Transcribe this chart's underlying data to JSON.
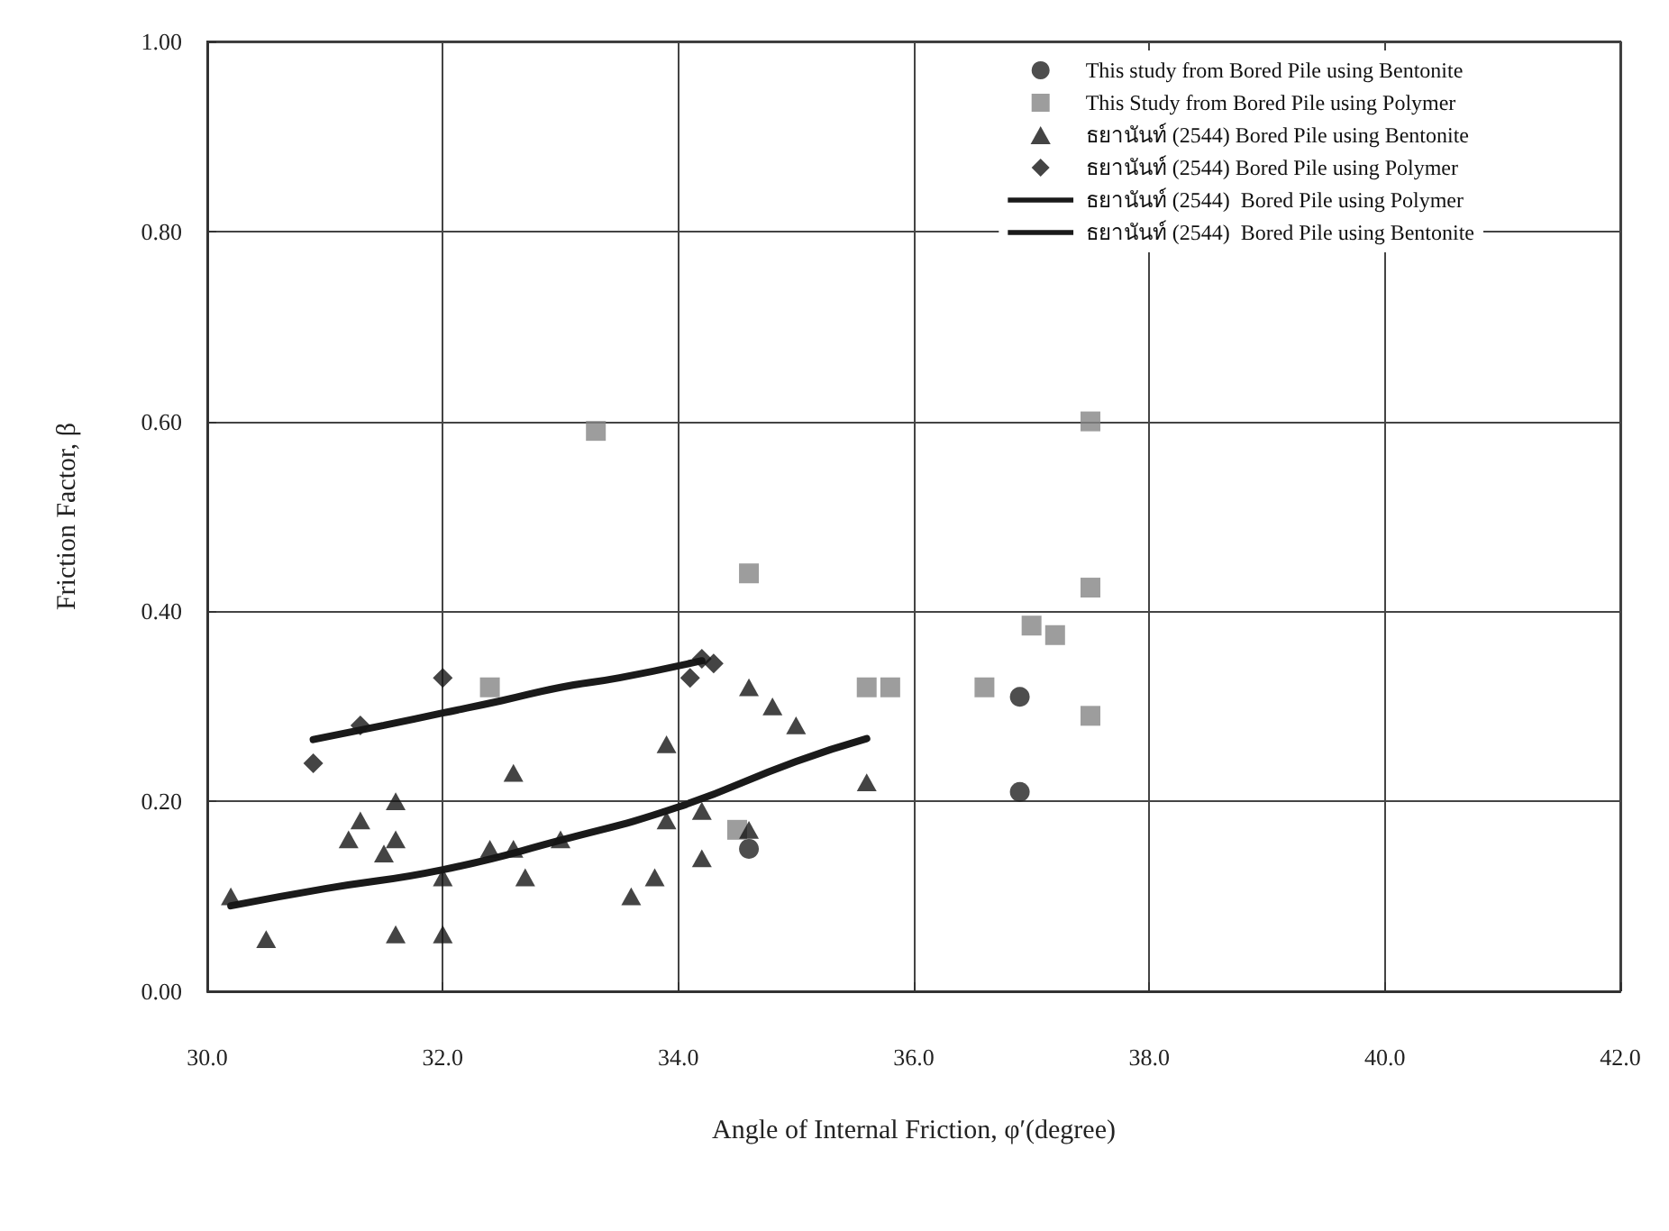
{
  "chart_data": {
    "type": "scatter",
    "xlabel": "Angle of Internal Friction, φ′(degree)",
    "ylabel": "Friction Factor, β",
    "xlim": [
      30,
      42
    ],
    "xticks": [
      {
        "value": 30,
        "label": "30.0"
      },
      {
        "value": 32,
        "label": "32.0"
      },
      {
        "value": 34,
        "label": "34.0"
      },
      {
        "value": 36,
        "label": "36.0"
      },
      {
        "value": 38,
        "label": "38.0"
      },
      {
        "value": 40,
        "label": "40.0"
      },
      {
        "value": 42,
        "label": "42.0"
      }
    ],
    "ylim": [
      0,
      1
    ],
    "yticks": [
      {
        "value": 0,
        "label": "0.00"
      },
      {
        "value": 0.2,
        "label": "0.20"
      },
      {
        "value": 0.4,
        "label": "0.40"
      },
      {
        "value": 0.6,
        "label": "0.60"
      },
      {
        "value": 0.8,
        "label": "0.80"
      },
      {
        "value": 1,
        "label": "1.00"
      }
    ],
    "grid": true,
    "legend": "top right",
    "series": [
      {
        "name": "This study from Bored Pile using Bentonite",
        "marker": "circle",
        "color": "#222222",
        "x": [
          34.6,
          36.9,
          36.9
        ],
        "values": [
          0.15,
          0.31,
          0.21
        ]
      },
      {
        "name": "This Study from Bored Pile using Polymer",
        "marker": "square",
        "color": "#858585",
        "x": [
          32.4,
          33.3,
          34.5,
          34.6,
          35.6,
          35.8,
          36.6,
          37.0,
          37.2,
          37.5,
          37.5,
          37.5
        ],
        "values": [
          0.32,
          0.59,
          0.17,
          0.44,
          0.32,
          0.32,
          0.32,
          0.385,
          0.375,
          0.425,
          0.6,
          0.29
        ]
      },
      {
        "name": "ธยานันท์ (2544) Bored Pile using Bentonite",
        "marker": "triangle",
        "color": "#151515",
        "x": [
          30.2,
          30.5,
          31.2,
          31.3,
          31.5,
          31.6,
          31.6,
          31.6,
          32.0,
          32.0,
          32.4,
          32.6,
          32.6,
          32.7,
          33.0,
          33.6,
          33.8,
          33.9,
          33.9,
          34.2,
          34.2,
          34.6,
          34.6,
          34.8,
          35.0,
          35.6
        ],
        "values": [
          0.1,
          0.055,
          0.16,
          0.18,
          0.145,
          0.16,
          0.2,
          0.06,
          0.06,
          0.12,
          0.15,
          0.23,
          0.15,
          0.12,
          0.16,
          0.1,
          0.12,
          0.18,
          0.26,
          0.19,
          0.14,
          0.32,
          0.17,
          0.3,
          0.28,
          0.22
        ]
      },
      {
        "name": "ธยานันท์ (2544) Bored Pile using Polymer",
        "marker": "diamond",
        "color": "#151515",
        "x": [
          30.9,
          31.3,
          32.0,
          34.1,
          34.2,
          34.3
        ],
        "values": [
          0.24,
          0.28,
          0.33,
          0.33,
          0.35,
          0.345
        ]
      },
      {
        "name": "ธยานันท์ (2544)  Bored Pile using Polymer",
        "type": "line",
        "marker": "none",
        "line_style": "solid",
        "color": "#1a1a1a",
        "x": [
          30.9,
          31.5,
          32.0,
          32.5,
          33.0,
          33.5,
          34.2
        ],
        "values": [
          0.265,
          0.28,
          0.293,
          0.306,
          0.32,
          0.33,
          0.348
        ]
      },
      {
        "name": "ธยานันท์ (2544)  Bored Pile using Bentonite",
        "type": "line",
        "marker": "none",
        "line_style": "solid",
        "color": "#1a1a1a",
        "x": [
          30.2,
          31.0,
          32.0,
          33.0,
          34.0,
          35.0,
          35.6
        ],
        "values": [
          0.09,
          0.108,
          0.128,
          0.159,
          0.194,
          0.242,
          0.266
        ]
      }
    ]
  }
}
